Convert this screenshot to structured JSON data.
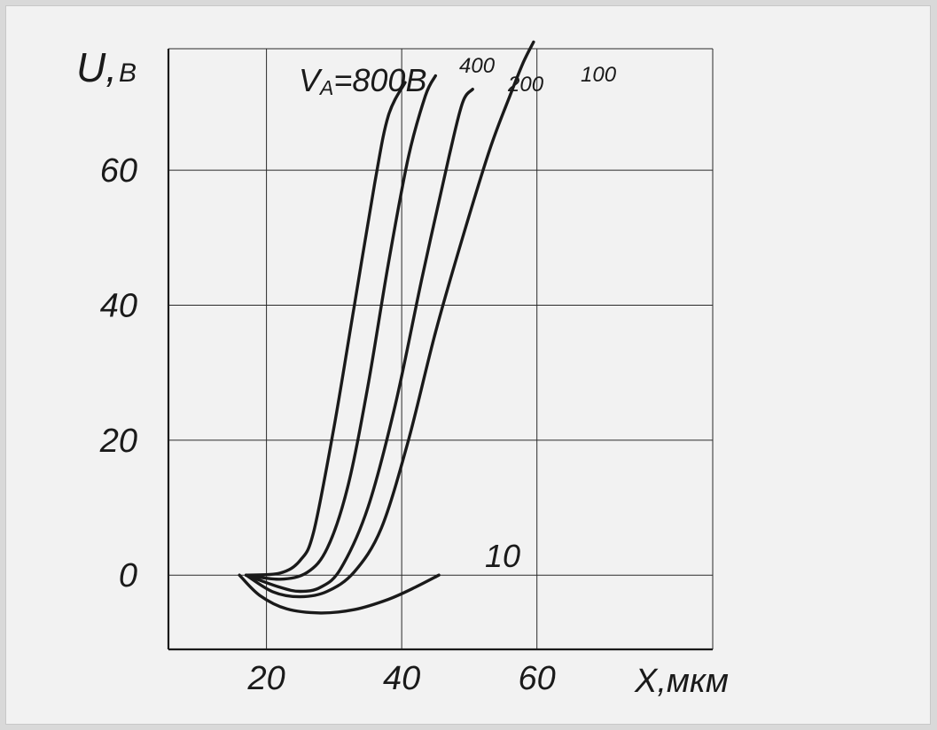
{
  "chart_data": {
    "type": "line",
    "ylabel": "U,",
    "ylabel_unit": "В",
    "xlabel": "X,мкм",
    "header_label": {
      "prefix": "V",
      "subscript": "A",
      "suffix": "=800В"
    },
    "grid": true,
    "xticks": [
      20,
      40,
      60
    ],
    "yticks": [
      0,
      20,
      40,
      60
    ],
    "xlim": [
      5.5,
      86
    ],
    "ylim": [
      -11,
      78
    ],
    "series": [
      {
        "name": "800В",
        "points": [
          [
            17,
            0
          ],
          [
            22,
            0.3
          ],
          [
            25,
            2.2
          ],
          [
            27,
            6.5
          ],
          [
            30,
            22
          ],
          [
            33,
            40
          ],
          [
            36,
            58
          ],
          [
            38,
            68
          ],
          [
            40.5,
            73
          ]
        ]
      },
      {
        "name": "400",
        "points": [
          [
            17,
            0
          ],
          [
            22,
            -0.6
          ],
          [
            26,
            0.4
          ],
          [
            29,
            4
          ],
          [
            32,
            13
          ],
          [
            35,
            28
          ],
          [
            38,
            46
          ],
          [
            41,
            62
          ],
          [
            43.5,
            71
          ],
          [
            45,
            74
          ]
        ]
      },
      {
        "name": "200",
        "points": [
          [
            17,
            0
          ],
          [
            22,
            -1.8
          ],
          [
            25,
            -2.4
          ],
          [
            28,
            -1.8
          ],
          [
            31,
            1
          ],
          [
            35,
            10
          ],
          [
            39,
            25
          ],
          [
            43,
            44
          ],
          [
            47,
            62
          ],
          [
            49,
            70
          ],
          [
            50.5,
            72
          ]
        ]
      },
      {
        "name": "100",
        "points": [
          [
            17,
            0
          ],
          [
            21,
            -2.5
          ],
          [
            25,
            -3.2
          ],
          [
            29,
            -2.4
          ],
          [
            33,
            0.5
          ],
          [
            37,
            7
          ],
          [
            41,
            20
          ],
          [
            45,
            36
          ],
          [
            49,
            50
          ],
          [
            53,
            63
          ],
          [
            56,
            71
          ],
          [
            58,
            76
          ],
          [
            59.5,
            79
          ]
        ]
      },
      {
        "name": "10",
        "points": [
          [
            16,
            0
          ],
          [
            19,
            -3
          ],
          [
            23,
            -5
          ],
          [
            28,
            -5.6
          ],
          [
            33,
            -5.1
          ],
          [
            38,
            -3.6
          ],
          [
            42,
            -1.8
          ],
          [
            45.5,
            0
          ]
        ]
      }
    ],
    "curve_labels": [
      "400",
      "200",
      "100",
      "10"
    ]
  }
}
